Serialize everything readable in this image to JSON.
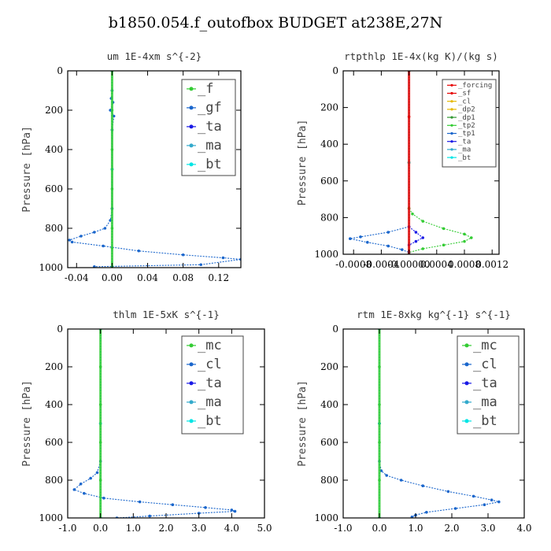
{
  "title": "b1850.054.f_outofbox  BUDGET at238E,27N",
  "chart_data": [
    {
      "type": "line",
      "title": "um   1E-4xm  s^{-2}",
      "ylabel": "Pressure [hPa]",
      "xlim": [
        -0.05,
        0.145
      ],
      "ylim": [
        1000,
        0
      ],
      "xticks": [
        -0.04,
        0.0,
        0.04,
        0.08,
        0.12
      ],
      "xtick_labels": [
        "-0.04",
        "0.00",
        "0.04",
        "0.08",
        "0.12"
      ],
      "yticks": [
        0,
        200,
        400,
        600,
        800,
        1000
      ],
      "legend_position": "top-right",
      "series": [
        {
          "name": "_f",
          "color": "#33cc33",
          "points": [
            [
              0,
              0
            ],
            [
              0,
              100
            ],
            [
              0,
              200
            ],
            [
              0,
              300
            ],
            [
              0,
              400
            ],
            [
              0,
              500
            ],
            [
              0,
              600
            ],
            [
              0,
              700
            ],
            [
              0,
              800
            ],
            [
              0,
              900
            ],
            [
              0,
              1000
            ]
          ]
        },
        {
          "name": "_gf",
          "color": "#1a66cc",
          "points": [
            [
              0,
              0
            ],
            [
              0,
              100
            ],
            [
              -0.001,
              140
            ],
            [
              0.001,
              160
            ],
            [
              -0.002,
              200
            ],
            [
              0.002,
              230
            ],
            [
              0,
              300
            ],
            [
              0,
              500
            ],
            [
              0,
              700
            ],
            [
              -0.002,
              760
            ],
            [
              -0.008,
              800
            ],
            [
              -0.02,
              820
            ],
            [
              -0.035,
              840
            ],
            [
              -0.048,
              860
            ],
            [
              -0.045,
              870
            ],
            [
              -0.01,
              890
            ],
            [
              0.03,
              915
            ],
            [
              0.08,
              935
            ],
            [
              0.125,
              950
            ],
            [
              0.145,
              958
            ],
            [
              0.1,
              985
            ],
            [
              -0.02,
              995
            ]
          ]
        },
        {
          "name": "_ta",
          "color": "#1a1ae6",
          "points": [
            [
              0,
              0
            ],
            [
              0,
              500
            ],
            [
              0,
              1000
            ]
          ]
        },
        {
          "name": "_ma",
          "color": "#33aacc",
          "points": [
            [
              0,
              0
            ],
            [
              0,
              500
            ],
            [
              0,
              1000
            ]
          ]
        },
        {
          "name": "_bt",
          "color": "#00e5e5",
          "points": [
            [
              0,
              0
            ],
            [
              0,
              500
            ],
            [
              0,
              1000
            ]
          ]
        }
      ]
    },
    {
      "type": "line",
      "title": "rtpthlp   1E-4x(kg K)/(kg s)",
      "ylabel": "Pressure [hPa]",
      "xlim": [
        -0.00095,
        0.0013
      ],
      "ylim": [
        1000,
        0
      ],
      "xticks": [
        -0.0008,
        -0.0004,
        0.0,
        0.0004,
        0.0008,
        0.0012
      ],
      "xtick_labels": [
        "-0.0008",
        "-0.0004",
        "-0.00000",
        "0.0004",
        "0.0008",
        "0.0012"
      ],
      "yticks": [
        0,
        200,
        400,
        600,
        800,
        1000
      ],
      "legend_position": "top-right",
      "series": [
        {
          "name": "_forcing",
          "color": "#e60000",
          "points": [
            [
              0,
              0
            ],
            [
              0,
              250
            ],
            [
              0,
              500
            ],
            [
              0,
              750
            ],
            [
              0,
              1000
            ]
          ]
        },
        {
          "name": "_sf",
          "color": "#e60000",
          "points": [
            [
              0,
              0
            ],
            [
              0,
              500
            ],
            [
              0,
              1000
            ]
          ]
        },
        {
          "name": "_cl",
          "color": "#e6b800",
          "points": [
            [
              0,
              0
            ],
            [
              0,
              500
            ],
            [
              0,
              1000
            ]
          ]
        },
        {
          "name": "_dp2",
          "color": "#e6b800",
          "points": [
            [
              0,
              0
            ],
            [
              0,
              500
            ],
            [
              0,
              1000
            ]
          ]
        },
        {
          "name": "_dp1",
          "color": "#339933",
          "points": [
            [
              0,
              0
            ],
            [
              0,
              500
            ],
            [
              0,
              1000
            ]
          ]
        },
        {
          "name": "_tp2",
          "color": "#33cc33",
          "points": [
            [
              0,
              0
            ],
            [
              0,
              750
            ],
            [
              5e-05,
              780
            ],
            [
              0.0002,
              820
            ],
            [
              0.0005,
              860
            ],
            [
              0.0008,
              890
            ],
            [
              0.0009,
              910
            ],
            [
              0.0008,
              930
            ],
            [
              0.0005,
              950
            ],
            [
              0.0002,
              970
            ],
            [
              0,
              990
            ]
          ]
        },
        {
          "name": "_tp1",
          "color": "#1a66cc",
          "points": [
            [
              0,
              850
            ],
            [
              -0.0003,
              880
            ],
            [
              -0.0007,
              905
            ],
            [
              -0.00085,
              915
            ],
            [
              -0.0006,
              935
            ],
            [
              -0.0003,
              955
            ],
            [
              -0.0001,
              975
            ],
            [
              0,
              990
            ]
          ]
        },
        {
          "name": "_ta",
          "color": "#1a1ae6",
          "points": [
            [
              0,
              850
            ],
            [
              0.0001,
              880
            ],
            [
              0.0002,
              910
            ],
            [
              0.0001,
              930
            ],
            [
              0,
              950
            ]
          ]
        },
        {
          "name": "_ma",
          "color": "#33aacc",
          "points": [
            [
              0,
              0
            ],
            [
              0,
              500
            ],
            [
              0,
              1000
            ]
          ]
        },
        {
          "name": "_bt",
          "color": "#00e5e5",
          "points": [
            [
              0,
              0
            ],
            [
              0,
              500
            ],
            [
              0,
              1000
            ]
          ]
        }
      ]
    },
    {
      "type": "line",
      "title": "thlm   1E-5xK  s^{-1}",
      "ylabel": "Pressure [hPa]",
      "xlim": [
        -1.0,
        5.0
      ],
      "ylim": [
        1000,
        0
      ],
      "xticks": [
        -1,
        0,
        1,
        2,
        3,
        4,
        5
      ],
      "xtick_labels": [
        "-1.0",
        "0.0",
        "1.0",
        "2.0",
        "3.0",
        "4.0",
        "5.0"
      ],
      "yticks": [
        0,
        200,
        400,
        600,
        800,
        1000
      ],
      "legend_position": "top-right",
      "series": [
        {
          "name": "_mc",
          "color": "#33cc33",
          "points": [
            [
              0,
              0
            ],
            [
              0,
              200
            ],
            [
              0,
              400
            ],
            [
              0,
              600
            ],
            [
              0,
              800
            ],
            [
              0,
              1000
            ]
          ]
        },
        {
          "name": "_cl",
          "color": "#1a66cc",
          "points": [
            [
              0,
              0
            ],
            [
              0,
              500
            ],
            [
              0,
              700
            ],
            [
              -0.1,
              760
            ],
            [
              -0.3,
              790
            ],
            [
              -0.6,
              820
            ],
            [
              -0.8,
              850
            ],
            [
              -0.5,
              870
            ],
            [
              0.1,
              895
            ],
            [
              1.2,
              915
            ],
            [
              2.2,
              930
            ],
            [
              3.2,
              945
            ],
            [
              4.0,
              958
            ],
            [
              4.1,
              965
            ],
            [
              3.0,
              975
            ],
            [
              1.5,
              990
            ],
            [
              0.5,
              1000
            ]
          ]
        },
        {
          "name": "_ta",
          "color": "#1a1ae6",
          "points": [
            [
              0,
              0
            ],
            [
              0,
              500
            ],
            [
              0,
              1000
            ]
          ]
        },
        {
          "name": "_ma",
          "color": "#33aacc",
          "points": [
            [
              0,
              0
            ],
            [
              0,
              500
            ],
            [
              0,
              1000
            ]
          ]
        },
        {
          "name": "_bt",
          "color": "#00e5e5",
          "points": [
            [
              0,
              0
            ],
            [
              0,
              500
            ],
            [
              0,
              1000
            ]
          ]
        }
      ]
    },
    {
      "type": "line",
      "title": "rtm   1E-8xkg  kg^{-1} s^{-1}",
      "ylabel": "Pressure [hPa]",
      "xlim": [
        -1.0,
        4.0
      ],
      "ylim": [
        1000,
        0
      ],
      "xticks": [
        -1,
        0,
        1,
        2,
        3,
        4
      ],
      "xtick_labels": [
        "-1.0",
        "0.0",
        "1.0",
        "2.0",
        "3.0",
        "4.0"
      ],
      "yticks": [
        0,
        200,
        400,
        600,
        800,
        1000
      ],
      "legend_position": "top-right",
      "series": [
        {
          "name": "_mc",
          "color": "#33cc33",
          "points": [
            [
              0,
              0
            ],
            [
              0,
              200
            ],
            [
              0,
              400
            ],
            [
              0,
              600
            ],
            [
              0,
              800
            ],
            [
              0,
              1000
            ]
          ]
        },
        {
          "name": "_cl",
          "color": "#1a66cc",
          "points": [
            [
              0,
              0
            ],
            [
              0,
              500
            ],
            [
              0,
              700
            ],
            [
              0.05,
              750
            ],
            [
              0.2,
              775
            ],
            [
              0.6,
              800
            ],
            [
              1.2,
              830
            ],
            [
              1.9,
              860
            ],
            [
              2.6,
              885
            ],
            [
              3.1,
              905
            ],
            [
              3.3,
              915
            ],
            [
              2.9,
              930
            ],
            [
              2.1,
              950
            ],
            [
              1.3,
              970
            ],
            [
              1.0,
              985
            ],
            [
              0.9,
              995
            ]
          ]
        },
        {
          "name": "_ta",
          "color": "#1a1ae6",
          "points": [
            [
              0,
              0
            ],
            [
              0,
              500
            ],
            [
              0,
              1000
            ]
          ]
        },
        {
          "name": "_ma",
          "color": "#33aacc",
          "points": [
            [
              0,
              0
            ],
            [
              0,
              500
            ],
            [
              0,
              1000
            ]
          ]
        },
        {
          "name": "_bt",
          "color": "#00e5e5",
          "points": [
            [
              0,
              0
            ],
            [
              0,
              500
            ],
            [
              0,
              1000
            ]
          ]
        }
      ]
    }
  ]
}
